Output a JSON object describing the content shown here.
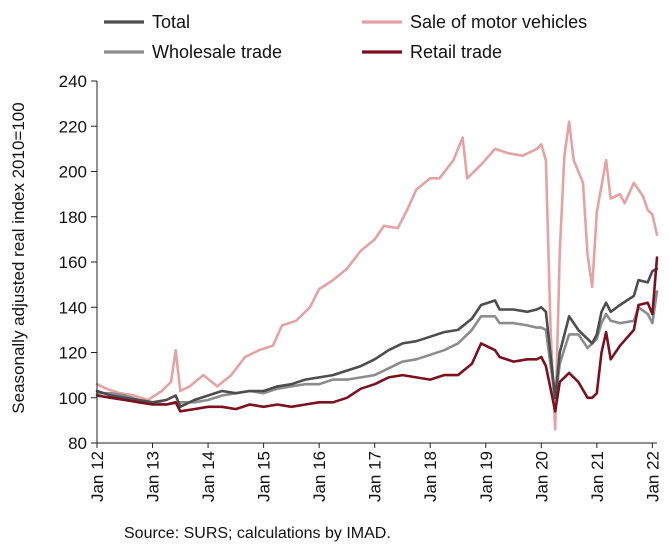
{
  "source": "Source: SURS; calculations by IMAD.",
  "chart_data": {
    "type": "line",
    "title": "",
    "xlabel": "",
    "ylabel": "Seasonally adjusted real index 2010=100",
    "ylim": [
      80,
      240
    ],
    "yticks": [
      80,
      100,
      120,
      140,
      160,
      180,
      200,
      220,
      240
    ],
    "xlim": [
      "2012-01",
      "2022-02"
    ],
    "xtick_labels": [
      "Jan 12",
      "Jan 13",
      "Jan 14",
      "Jan 15",
      "Jan 16",
      "Jan 17",
      "Jan 18",
      "Jan 19",
      "Jan 20",
      "Jan 21",
      "Jan 22"
    ],
    "grid": false,
    "legend": "top",
    "series": [
      {
        "name": "Total",
        "color": "#4d4d4d",
        "points": [
          [
            "2012-01",
            103
          ],
          [
            "2012-04",
            101
          ],
          [
            "2012-07",
            100
          ],
          [
            "2012-10",
            99
          ],
          [
            "2013-01",
            98
          ],
          [
            "2013-04",
            99
          ],
          [
            "2013-06",
            101
          ],
          [
            "2013-07",
            96
          ],
          [
            "2013-10",
            99
          ],
          [
            "2014-01",
            101
          ],
          [
            "2014-04",
            103
          ],
          [
            "2014-07",
            102
          ],
          [
            "2014-10",
            103
          ],
          [
            "2015-01",
            103
          ],
          [
            "2015-04",
            105
          ],
          [
            "2015-07",
            106
          ],
          [
            "2015-10",
            108
          ],
          [
            "2016-01",
            109
          ],
          [
            "2016-04",
            110
          ],
          [
            "2016-07",
            112
          ],
          [
            "2016-10",
            114
          ],
          [
            "2017-01",
            117
          ],
          [
            "2017-04",
            121
          ],
          [
            "2017-07",
            124
          ],
          [
            "2017-10",
            125
          ],
          [
            "2018-01",
            127
          ],
          [
            "2018-04",
            129
          ],
          [
            "2018-07",
            130
          ],
          [
            "2018-10",
            135
          ],
          [
            "2018-12",
            141
          ],
          [
            "2019-03",
            143
          ],
          [
            "2019-04",
            139
          ],
          [
            "2019-07",
            139
          ],
          [
            "2019-10",
            138
          ],
          [
            "2019-12",
            139
          ],
          [
            "2020-01",
            140
          ],
          [
            "2020-02",
            138
          ],
          [
            "2020-04",
            100
          ],
          [
            "2020-05",
            120
          ],
          [
            "2020-07",
            136
          ],
          [
            "2020-09",
            130
          ],
          [
            "2020-11",
            126
          ],
          [
            "2020-12",
            124
          ],
          [
            "2021-01",
            128
          ],
          [
            "2021-02",
            138
          ],
          [
            "2021-03",
            142
          ],
          [
            "2021-04",
            138
          ],
          [
            "2021-06",
            141
          ],
          [
            "2021-09",
            145
          ],
          [
            "2021-10",
            152
          ],
          [
            "2021-12",
            151
          ],
          [
            "2022-01",
            156
          ],
          [
            "2022-02",
            157
          ]
        ]
      },
      {
        "name": "Sale of motor vehicles",
        "color": "#e4a2a4",
        "points": [
          [
            "2012-01",
            106
          ],
          [
            "2012-03",
            104
          ],
          [
            "2012-06",
            102
          ],
          [
            "2012-09",
            101
          ],
          [
            "2012-12",
            99
          ],
          [
            "2013-03",
            103
          ],
          [
            "2013-05",
            107
          ],
          [
            "2013-06",
            121
          ],
          [
            "2013-07",
            103
          ],
          [
            "2013-09",
            105
          ],
          [
            "2013-12",
            110
          ],
          [
            "2014-03",
            105
          ],
          [
            "2014-06",
            110
          ],
          [
            "2014-09",
            118
          ],
          [
            "2014-12",
            121
          ],
          [
            "2015-03",
            123
          ],
          [
            "2015-05",
            132
          ],
          [
            "2015-08",
            134
          ],
          [
            "2015-11",
            140
          ],
          [
            "2016-01",
            148
          ],
          [
            "2016-04",
            152
          ],
          [
            "2016-07",
            157
          ],
          [
            "2016-10",
            165
          ],
          [
            "2017-01",
            170
          ],
          [
            "2017-03",
            176
          ],
          [
            "2017-06",
            175
          ],
          [
            "2017-08",
            183
          ],
          [
            "2017-10",
            192
          ],
          [
            "2018-01",
            197
          ],
          [
            "2018-03",
            197
          ],
          [
            "2018-06",
            205
          ],
          [
            "2018-08",
            215
          ],
          [
            "2018-09",
            197
          ],
          [
            "2018-12",
            203
          ],
          [
            "2019-03",
            210
          ],
          [
            "2019-06",
            208
          ],
          [
            "2019-09",
            207
          ],
          [
            "2019-12",
            210
          ],
          [
            "2020-01",
            212
          ],
          [
            "2020-02",
            205
          ],
          [
            "2020-03",
            130
          ],
          [
            "2020-04",
            86
          ],
          [
            "2020-05",
            165
          ],
          [
            "2020-06",
            207
          ],
          [
            "2020-07",
            222
          ],
          [
            "2020-08",
            205
          ],
          [
            "2020-10",
            195
          ],
          [
            "2020-11",
            163
          ],
          [
            "2020-12",
            149
          ],
          [
            "2021-01",
            182
          ],
          [
            "2021-03",
            205
          ],
          [
            "2021-04",
            188
          ],
          [
            "2021-06",
            190
          ],
          [
            "2021-07",
            186
          ],
          [
            "2021-09",
            195
          ],
          [
            "2021-11",
            189
          ],
          [
            "2021-12",
            183
          ],
          [
            "2022-01",
            181
          ],
          [
            "2022-02",
            172
          ]
        ]
      },
      {
        "name": "Wholesale trade",
        "color": "#8c8c8c",
        "points": [
          [
            "2012-01",
            102
          ],
          [
            "2012-04",
            102
          ],
          [
            "2012-07",
            101
          ],
          [
            "2012-10",
            99
          ],
          [
            "2013-01",
            98
          ],
          [
            "2013-04",
            97
          ],
          [
            "2013-07",
            98
          ],
          [
            "2013-10",
            98
          ],
          [
            "2014-01",
            99
          ],
          [
            "2014-04",
            101
          ],
          [
            "2014-07",
            102
          ],
          [
            "2014-10",
            103
          ],
          [
            "2015-01",
            102
          ],
          [
            "2015-04",
            104
          ],
          [
            "2015-07",
            105
          ],
          [
            "2015-10",
            106
          ],
          [
            "2016-01",
            106
          ],
          [
            "2016-04",
            108
          ],
          [
            "2016-07",
            108
          ],
          [
            "2016-10",
            109
          ],
          [
            "2017-01",
            110
          ],
          [
            "2017-04",
            113
          ],
          [
            "2017-07",
            116
          ],
          [
            "2017-10",
            117
          ],
          [
            "2018-01",
            119
          ],
          [
            "2018-04",
            121
          ],
          [
            "2018-07",
            124
          ],
          [
            "2018-10",
            130
          ],
          [
            "2018-12",
            136
          ],
          [
            "2019-03",
            136
          ],
          [
            "2019-04",
            133
          ],
          [
            "2019-07",
            133
          ],
          [
            "2019-10",
            132
          ],
          [
            "2019-12",
            131
          ],
          [
            "2020-01",
            131
          ],
          [
            "2020-02",
            130
          ],
          [
            "2020-04",
            99
          ],
          [
            "2020-05",
            115
          ],
          [
            "2020-07",
            128
          ],
          [
            "2020-09",
            128
          ],
          [
            "2020-11",
            122
          ],
          [
            "2020-12",
            124
          ],
          [
            "2021-01",
            126
          ],
          [
            "2021-02",
            133
          ],
          [
            "2021-03",
            137
          ],
          [
            "2021-04",
            134
          ],
          [
            "2021-06",
            133
          ],
          [
            "2021-09",
            134
          ],
          [
            "2021-10",
            140
          ],
          [
            "2021-12",
            137
          ],
          [
            "2022-01",
            133
          ],
          [
            "2022-02",
            147
          ]
        ]
      },
      {
        "name": "Retail trade",
        "color": "#7a1020",
        "points": [
          [
            "2012-01",
            101
          ],
          [
            "2012-04",
            100
          ],
          [
            "2012-07",
            99
          ],
          [
            "2012-10",
            98
          ],
          [
            "2013-01",
            97
          ],
          [
            "2013-04",
            97
          ],
          [
            "2013-06",
            98
          ],
          [
            "2013-07",
            94
          ],
          [
            "2013-10",
            95
          ],
          [
            "2014-01",
            96
          ],
          [
            "2014-04",
            96
          ],
          [
            "2014-07",
            95
          ],
          [
            "2014-10",
            97
          ],
          [
            "2015-01",
            96
          ],
          [
            "2015-04",
            97
          ],
          [
            "2015-07",
            96
          ],
          [
            "2015-10",
            97
          ],
          [
            "2016-01",
            98
          ],
          [
            "2016-04",
            98
          ],
          [
            "2016-07",
            100
          ],
          [
            "2016-10",
            104
          ],
          [
            "2017-01",
            106
          ],
          [
            "2017-04",
            109
          ],
          [
            "2017-07",
            110
          ],
          [
            "2017-10",
            109
          ],
          [
            "2018-01",
            108
          ],
          [
            "2018-04",
            110
          ],
          [
            "2018-07",
            110
          ],
          [
            "2018-10",
            115
          ],
          [
            "2018-12",
            124
          ],
          [
            "2019-03",
            121
          ],
          [
            "2019-04",
            118
          ],
          [
            "2019-07",
            116
          ],
          [
            "2019-10",
            117
          ],
          [
            "2019-12",
            117
          ],
          [
            "2020-01",
            118
          ],
          [
            "2020-02",
            114
          ],
          [
            "2020-04",
            94
          ],
          [
            "2020-05",
            107
          ],
          [
            "2020-07",
            111
          ],
          [
            "2020-09",
            107
          ],
          [
            "2020-11",
            100
          ],
          [
            "2020-12",
            100
          ],
          [
            "2021-01",
            102
          ],
          [
            "2021-02",
            120
          ],
          [
            "2021-03",
            129
          ],
          [
            "2021-04",
            117
          ],
          [
            "2021-06",
            123
          ],
          [
            "2021-09",
            130
          ],
          [
            "2021-10",
            141
          ],
          [
            "2021-12",
            142
          ],
          [
            "2022-01",
            137
          ],
          [
            "2022-02",
            162
          ]
        ]
      }
    ]
  }
}
